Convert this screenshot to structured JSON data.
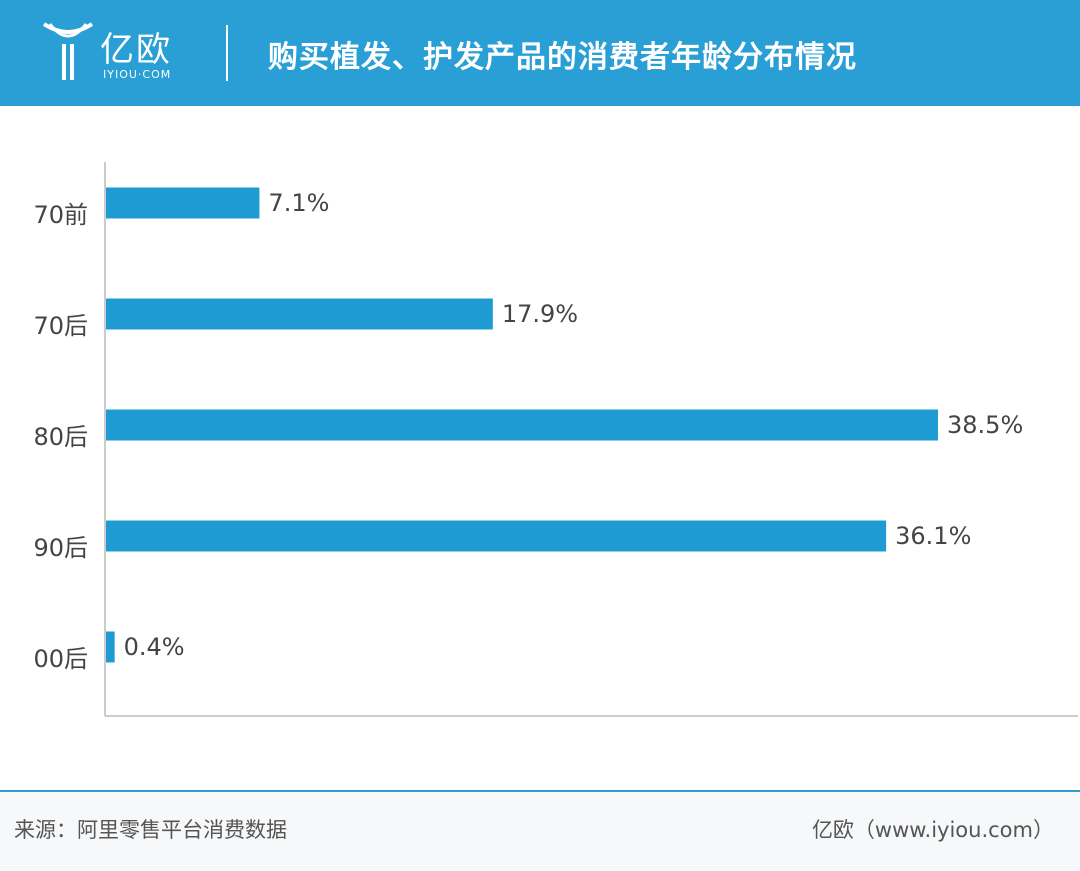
{
  "header": {
    "logo_text": "亿欧",
    "logo_subtext": "IYIOU·COM",
    "title": "购买植发、护发产品的消费者年龄分布情况",
    "background_color": "#2a9fd6"
  },
  "chart_data": {
    "type": "bar",
    "orientation": "horizontal",
    "categories": [
      "70前",
      "70后",
      "80后",
      "90后",
      "00后"
    ],
    "values": [
      7.1,
      17.9,
      38.5,
      36.1,
      0.4
    ],
    "value_labels": [
      "7.1%",
      "17.9%",
      "38.5%",
      "36.1%",
      "0.4%"
    ],
    "unit": "%",
    "xlim": [
      0,
      40
    ],
    "bar_color": "#1f9bd3",
    "grid": false,
    "xlabel": "",
    "ylabel": ""
  },
  "footer": {
    "source": "来源：阿里零售平台消费数据",
    "credit": "亿欧（www.iyiou.com）"
  }
}
